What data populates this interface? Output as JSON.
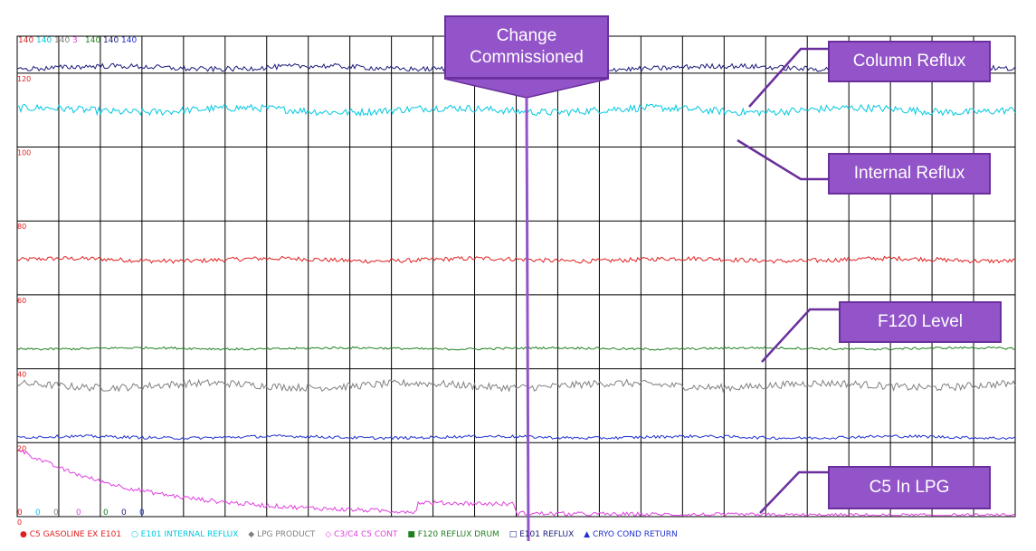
{
  "chart_data": {
    "type": "line",
    "ylim": [
      0,
      130
    ],
    "left_scale_ticks": [
      0,
      20,
      40,
      60,
      80,
      100,
      120
    ],
    "top_range_labels": [
      {
        "text": "140",
        "color": "#e02020"
      },
      {
        "text": "140",
        "color": "#00c8e0"
      },
      {
        "text": "140",
        "color": "#808080"
      },
      {
        "text": "3",
        "color": "#e040e0"
      },
      {
        "text": "140",
        "color": "#208020"
      },
      {
        "text": "140",
        "color": "#1a1a7a"
      },
      {
        "text": "140",
        "color": "#2030d0"
      }
    ],
    "bottom_range_labels": [
      {
        "text": "0",
        "color": "#e02020"
      },
      {
        "text": "0",
        "color": "#00c8e0"
      },
      {
        "text": "0",
        "color": "#808080"
      },
      {
        "text": "0",
        "color": "#e040e0"
      },
      {
        "text": "0",
        "color": "#208020"
      },
      {
        "text": "0",
        "color": "#1a1a7a"
      },
      {
        "text": "0",
        "color": "#2030d0"
      }
    ],
    "series": [
      {
        "name": "C5 GASOLINE EX E101",
        "color": "#e02020",
        "marker": "●",
        "level": 69.5,
        "noise": 0.6
      },
      {
        "name": "E101 INTERNAL REFLUX",
        "color": "#00c8e0",
        "marker": "○",
        "level": 110,
        "noise": 1.0
      },
      {
        "name": "LPG PRODUCT",
        "color": "#808080",
        "marker": "◆",
        "level": 35.5,
        "noise": 1.0
      },
      {
        "name": "C3/C4 C5 CONT",
        "color": "#e040e0",
        "marker": "◇",
        "level": 4,
        "noise": 0.5
      },
      {
        "name": "F120 REFLUX DRUM",
        "color": "#208020",
        "marker": "■",
        "level": 45.5,
        "noise": 0.3
      },
      {
        "name": "E101 REFLUX",
        "color": "#1a1a7a",
        "marker": "□",
        "level": 121.5,
        "noise": 0.7
      },
      {
        "name": "CRYO COND RETURN",
        "color": "#2030d0",
        "marker": "▲",
        "level": 21.5,
        "noise": 0.4
      }
    ],
    "annotations": [
      {
        "text": "Change Commissioned"
      },
      {
        "text": "Column Reflux"
      },
      {
        "text": "Internal Reflux"
      },
      {
        "text": "F120 Level"
      },
      {
        "text": "C5 In LPG"
      }
    ]
  }
}
